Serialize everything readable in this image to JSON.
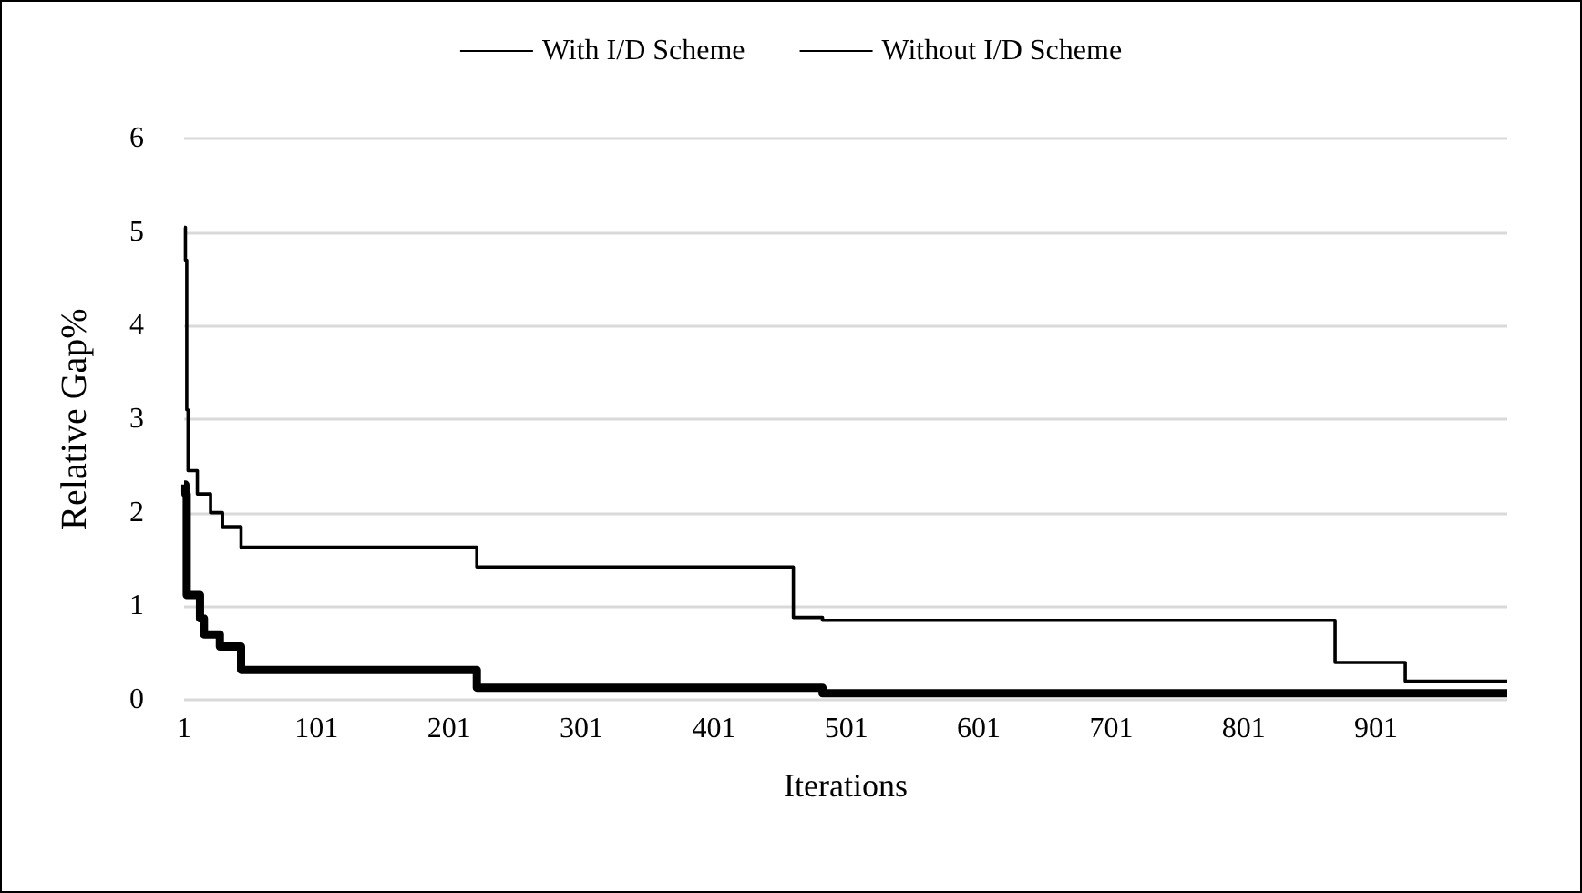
{
  "chart_data": {
    "type": "step",
    "xlabel": "Iterations",
    "ylabel": "Relative Gap%",
    "xlim": [
      1,
      1000
    ],
    "xticks": [
      1,
      101,
      201,
      301,
      401,
      501,
      601,
      701,
      801,
      901
    ],
    "ylim": [
      0,
      6
    ],
    "yticks": [
      0,
      1,
      2,
      3,
      4,
      5,
      6
    ],
    "grid": "y",
    "legend": "top",
    "marker": "none",
    "series": [
      {
        "name": "With I/D Scheme",
        "color": "#000000",
        "x": [
          1,
          2,
          3,
          13,
          16,
          28,
          44,
          222,
          483,
          1000
        ],
        "values": [
          2.3,
          2.2,
          1.12,
          0.87,
          0.7,
          0.57,
          0.32,
          0.13,
          0.07,
          0.07
        ]
      },
      {
        "name": "Without I/D Scheme",
        "color": "#000000",
        "x": [
          1,
          2,
          3,
          4,
          11,
          21,
          30,
          44,
          222,
          461,
          483,
          870,
          923,
          1000
        ],
        "values": [
          5.05,
          4.7,
          3.1,
          2.45,
          2.2,
          2.0,
          1.85,
          1.63,
          1.42,
          0.88,
          0.85,
          0.4,
          0.2,
          0.2
        ]
      }
    ]
  }
}
